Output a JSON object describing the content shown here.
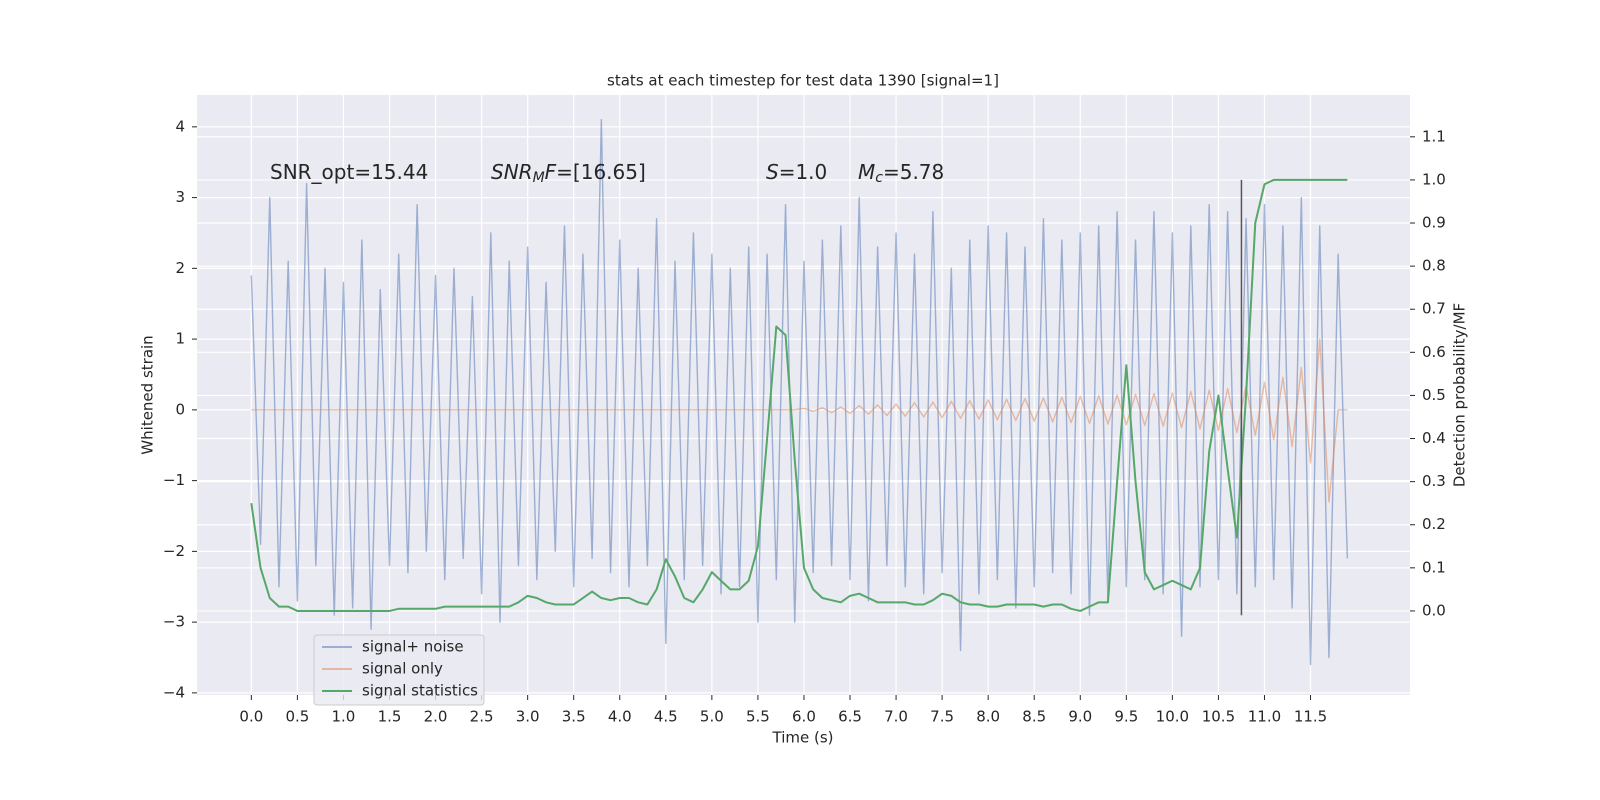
{
  "chart_data": {
    "type": "line",
    "title": "stats at each timestep for test data 1390 [signal=1]",
    "xlabel": "Time (s)",
    "ylabel": "Whitened strain",
    "y2label": "Detection probability/MF",
    "xlim": [
      -0.59,
      12.58
    ],
    "ylim": [
      -4.03,
      4.45
    ],
    "y2lim": [
      -0.195,
      1.197
    ],
    "xticks": [
      {
        "value": 0,
        "label": "0.0"
      },
      0.5,
      {
        "value": 1,
        "label": "1.0"
      },
      1.5,
      {
        "value": 2,
        "label": "2.0"
      },
      2.5,
      {
        "value": 3,
        "label": "3.0"
      },
      3.5,
      {
        "value": 4,
        "label": "4.0"
      },
      4.5,
      {
        "value": 5,
        "label": "5.0"
      },
      5.5,
      {
        "value": 6,
        "label": "6.0"
      },
      6.5,
      {
        "value": 7,
        "label": "7.0"
      },
      7.5,
      {
        "value": 8,
        "label": "8.0"
      },
      8.5,
      {
        "value": 9,
        "label": "9.0"
      },
      9.5,
      {
        "value": 10,
        "label": "10.0"
      },
      10.5,
      {
        "value": 11,
        "label": "11.0"
      },
      11.5
    ],
    "yticks": [
      {
        "value": -4,
        "label": "−4"
      },
      {
        "value": -3,
        "label": "−3"
      },
      {
        "value": -2,
        "label": "−2"
      },
      {
        "value": -1,
        "label": "−1"
      },
      0,
      1,
      2,
      3,
      4
    ],
    "y2ticks": [
      {
        "value": 0,
        "label": "0.0"
      },
      0.1,
      0.2,
      0.3,
      0.4,
      0.5,
      0.6,
      0.7,
      0.8,
      0.9,
      {
        "value": 1,
        "label": "1.0"
      },
      1.1
    ],
    "grid": true,
    "legend": "lower left",
    "x": [
      0.0,
      0.1,
      0.2,
      0.3,
      0.4,
      0.5,
      0.6,
      0.7,
      0.8,
      0.9,
      1.0,
      1.1,
      1.2,
      1.3,
      1.4,
      1.5,
      1.6,
      1.7,
      1.8,
      1.9,
      2.0,
      2.1,
      2.2,
      2.3,
      2.4,
      2.5,
      2.6,
      2.7,
      2.8,
      2.9,
      3.0,
      3.1,
      3.2,
      3.3,
      3.4,
      3.5,
      3.6,
      3.7,
      3.8,
      3.9,
      4.0,
      4.1,
      4.2,
      4.3,
      4.4,
      4.5,
      4.6,
      4.7,
      4.8,
      4.9,
      5.0,
      5.1,
      5.2,
      5.3,
      5.4,
      5.5,
      5.6,
      5.7,
      5.8,
      5.9,
      6.0,
      6.1,
      6.2,
      6.3,
      6.4,
      6.5,
      6.6,
      6.7,
      6.8,
      6.9,
      7.0,
      7.1,
      7.2,
      7.3,
      7.4,
      7.5,
      7.6,
      7.7,
      7.8,
      7.9,
      8.0,
      8.1,
      8.2,
      8.3,
      8.4,
      8.5,
      8.6,
      8.7,
      8.8,
      8.9,
      9.0,
      9.1,
      9.2,
      9.3,
      9.4,
      9.5,
      9.6,
      9.7,
      9.8,
      9.9,
      10.0,
      10.1,
      10.2,
      10.3,
      10.4,
      10.5,
      10.6,
      10.7,
      10.8,
      10.9,
      11.0,
      11.1,
      11.2,
      11.3,
      11.4,
      11.5,
      11.6,
      11.7,
      11.8,
      11.9
    ],
    "series": [
      {
        "name": "signal+ noise",
        "color": "#4c72b0",
        "alpha": 0.5,
        "values": [
          1.9,
          -1.9,
          3.0,
          -2.5,
          2.1,
          -2.7,
          3.2,
          -2.2,
          2.0,
          -2.9,
          1.8,
          -2.8,
          2.4,
          -3.1,
          1.7,
          -2.2,
          2.2,
          -2.3,
          2.9,
          -2.0,
          1.9,
          -2.4,
          2.0,
          -2.1,
          1.6,
          -2.6,
          2.5,
          -3.0,
          2.1,
          -2.2,
          2.3,
          -2.4,
          1.8,
          -2.0,
          2.6,
          -2.5,
          2.2,
          -2.1,
          4.1,
          -2.3,
          2.4,
          -2.5,
          2.0,
          -2.2,
          2.7,
          -3.3,
          2.1,
          -2.4,
          2.5,
          -2.2,
          2.2,
          -2.6,
          2.0,
          -2.5,
          2.3,
          -3.0,
          2.2,
          -2.4,
          2.9,
          -3.0,
          2.1,
          -2.3,
          2.4,
          -2.2,
          2.6,
          -2.4,
          3.0,
          -2.7,
          2.3,
          -2.2,
          2.5,
          -2.5,
          2.2,
          -2.6,
          2.8,
          -2.3,
          2.0,
          -3.4,
          2.4,
          -2.6,
          2.6,
          -2.4,
          2.5,
          -2.8,
          2.3,
          -2.5,
          2.7,
          -2.3,
          2.4,
          -2.6,
          2.5,
          -2.9,
          2.6,
          -2.7,
          2.8,
          -2.5,
          2.4,
          -2.4,
          2.8,
          -2.6,
          2.5,
          -3.2,
          2.6,
          -2.5,
          2.9,
          -2.4,
          2.8,
          -2.6,
          2.7,
          -2.5,
          2.9,
          -2.4,
          2.6,
          -2.8,
          3.0,
          -3.6,
          2.6,
          -3.5,
          2.2,
          -2.1
        ]
      },
      {
        "name": "signal only",
        "color": "#dd8452",
        "alpha": 0.5,
        "values": [
          0,
          0,
          0,
          0,
          0,
          0,
          0,
          0,
          0,
          0,
          0,
          0,
          0,
          0,
          0,
          0,
          0,
          0,
          0,
          0,
          0,
          0,
          0,
          0,
          0,
          0,
          0,
          0,
          0,
          0,
          0,
          0,
          0,
          0,
          0,
          0,
          0,
          0,
          0,
          0,
          0,
          0,
          0,
          0,
          0,
          0,
          0,
          0,
          0,
          0,
          0,
          0,
          0,
          0,
          0,
          0,
          0,
          0,
          0,
          0,
          0.02,
          -0.02,
          0.03,
          -0.04,
          0.04,
          -0.05,
          0.06,
          -0.06,
          0.07,
          -0.08,
          0.08,
          -0.09,
          0.1,
          -0.1,
          0.11,
          -0.11,
          0.12,
          -0.12,
          0.13,
          -0.13,
          0.14,
          -0.14,
          0.15,
          -0.15,
          0.16,
          -0.16,
          0.17,
          -0.17,
          0.18,
          -0.18,
          0.19,
          -0.19,
          0.2,
          -0.2,
          0.21,
          -0.21,
          0.22,
          -0.22,
          0.23,
          -0.23,
          0.24,
          -0.25,
          0.26,
          -0.27,
          0.28,
          -0.29,
          0.3,
          -0.32,
          0.34,
          -0.36,
          0.39,
          -0.42,
          0.46,
          -0.52,
          0.6,
          -0.75,
          1.0,
          -1.3,
          0,
          0
        ]
      },
      {
        "name": "signal statistics",
        "color": "#55a868",
        "alpha": 1,
        "axis": "y2",
        "values": [
          0.25,
          0.1,
          0.03,
          0.01,
          0.01,
          0.0,
          0.0,
          0.0,
          0.0,
          0.0,
          0.0,
          0.0,
          0.0,
          0.0,
          0.0,
          0.0,
          0.005,
          0.005,
          0.005,
          0.005,
          0.005,
          0.01,
          0.01,
          0.01,
          0.01,
          0.01,
          0.01,
          0.01,
          0.01,
          0.02,
          0.035,
          0.03,
          0.02,
          0.015,
          0.015,
          0.015,
          0.03,
          0.045,
          0.03,
          0.025,
          0.03,
          0.03,
          0.02,
          0.015,
          0.05,
          0.12,
          0.08,
          0.03,
          0.02,
          0.05,
          0.09,
          0.07,
          0.05,
          0.05,
          0.07,
          0.15,
          0.4,
          0.66,
          0.64,
          0.35,
          0.1,
          0.05,
          0.03,
          0.025,
          0.02,
          0.035,
          0.04,
          0.03,
          0.02,
          0.02,
          0.02,
          0.02,
          0.015,
          0.015,
          0.025,
          0.04,
          0.035,
          0.02,
          0.015,
          0.015,
          0.01,
          0.01,
          0.015,
          0.015,
          0.015,
          0.015,
          0.01,
          0.015,
          0.015,
          0.005,
          0.0,
          0.01,
          0.02,
          0.02,
          0.3,
          0.57,
          0.3,
          0.09,
          0.05,
          0.06,
          0.07,
          0.06,
          0.05,
          0.1,
          0.37,
          0.5,
          0.33,
          0.17,
          0.5,
          0.9,
          0.99,
          1.0,
          1.0,
          1.0,
          1.0,
          1.0,
          1.0,
          1.0,
          1.0,
          1.0
        ]
      }
    ],
    "vline": {
      "x": 10.75,
      "y2": [
        -0.01,
        1.0
      ],
      "color": "#555555"
    },
    "annotations": [
      {
        "parts": [
          {
            "text": "SNR_opt=15.44",
            "style": "normal"
          }
        ]
      },
      {
        "parts": [
          {
            "text": "SNR",
            "style": "italic"
          },
          {
            "text": "M",
            "style": "sub"
          },
          {
            "text": "F",
            "style": "italic"
          },
          {
            "text": "=[16.65]",
            "style": "normal"
          }
        ]
      },
      {
        "parts": [
          {
            "text": "S",
            "style": "italic"
          },
          {
            "text": "=1.0",
            "style": "normal"
          }
        ]
      },
      {
        "parts": [
          {
            "text": "M",
            "style": "italic"
          },
          {
            "text": "c",
            "style": "sub"
          },
          {
            "text": "=5.78",
            "style": "normal"
          }
        ]
      }
    ]
  }
}
